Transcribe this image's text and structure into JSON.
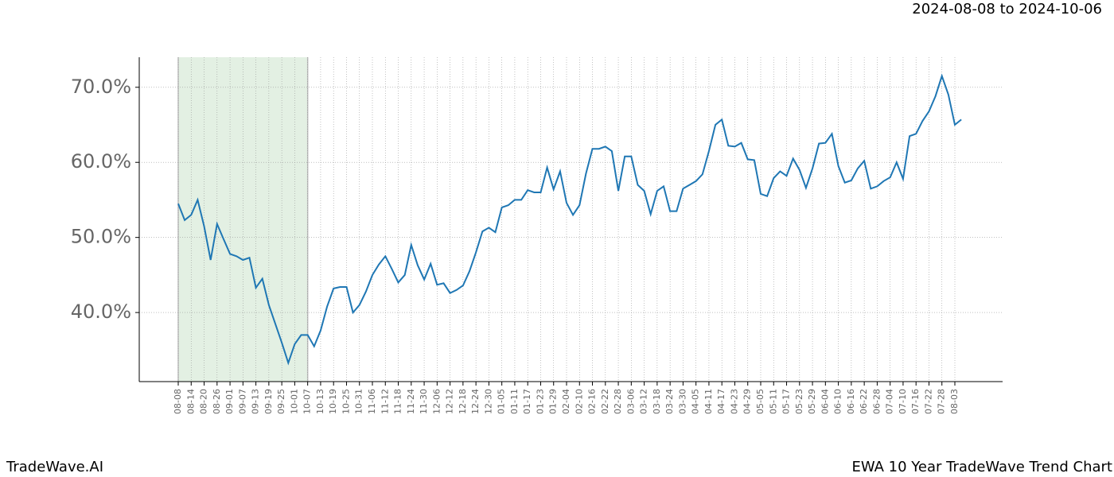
{
  "chart_data": {
    "type": "line",
    "title": "EWA 10 Year TradeWave Trend Chart",
    "subtitle": "2024-08-08 to 2024-10-06",
    "brand": "TradeWave.AI",
    "color": "#1f77b4",
    "grid": true,
    "shaded_span": [
      "08-08",
      "10-07"
    ],
    "shade_color": "#e3f0e3",
    "ylim": [
      30.8,
      74.0
    ],
    "yticks": [
      {
        "value": 40,
        "label": "40.0%"
      },
      {
        "value": 50,
        "label": "50.0%"
      },
      {
        "value": 60,
        "label": "60.0%"
      },
      {
        "value": 70,
        "label": "70.0%"
      }
    ],
    "categories": [
      "08-08",
      null,
      "08-14",
      null,
      "08-20",
      null,
      "08-26",
      null,
      "09-01",
      null,
      "09-07",
      null,
      "09-13",
      null,
      "09-19",
      null,
      "09-25",
      null,
      "10-01",
      null,
      "10-07",
      null,
      "10-13",
      null,
      "10-19",
      null,
      "10-25",
      null,
      "10-31",
      null,
      "11-06",
      null,
      "11-12",
      null,
      "11-18",
      null,
      "11-24",
      null,
      "11-30",
      null,
      "12-06",
      null,
      "12-12",
      null,
      "12-18",
      null,
      "12-24",
      null,
      "12-30",
      null,
      "01-05",
      null,
      "01-11",
      null,
      "01-17",
      null,
      "01-23",
      null,
      "01-29",
      null,
      "02-04",
      null,
      "02-10",
      null,
      "02-16",
      null,
      "02-22",
      null,
      "02-28",
      null,
      "03-06",
      null,
      "03-12",
      null,
      "03-18",
      null,
      "03-24",
      null,
      "03-30",
      null,
      "04-05",
      null,
      "04-11",
      null,
      "04-17",
      null,
      "04-23",
      null,
      "04-29",
      null,
      "05-05",
      null,
      "05-11",
      null,
      "05-17",
      null,
      "05-23",
      null,
      "05-29",
      null,
      "06-04",
      null,
      "06-10",
      null,
      "06-16",
      null,
      "06-22",
      null,
      "06-28",
      null,
      "07-04",
      null,
      "07-10",
      null,
      "07-16",
      null,
      "07-22",
      null,
      "07-28",
      null,
      "08-03",
      null
    ],
    "values": [
      54.5,
      52.3,
      53,
      55,
      51.5,
      47,
      51.8,
      49.8,
      47.8,
      47.5,
      47,
      47.3,
      43.3,
      44.5,
      41,
      38.5,
      36,
      33.3,
      35.8,
      37,
      37,
      35.5,
      37.6,
      40.8,
      43.2,
      43.4,
      43.4,
      40,
      41,
      42.8,
      45,
      46.4,
      47.5,
      45.8,
      44,
      45,
      49,
      46.3,
      44.4,
      46.5,
      43.7,
      43.9,
      42.6,
      43,
      43.6,
      45.5,
      48,
      50.8,
      51.3,
      50.7,
      54,
      54.3,
      55,
      55,
      56.3,
      56,
      56,
      59.3,
      56.4,
      58.8,
      54.6,
      53,
      54.3,
      58.5,
      61.8,
      61.8,
      62.1,
      61.5,
      56.2,
      60.8,
      60.8,
      57,
      56.2,
      53.1,
      56.2,
      56.8,
      53.5,
      53.5,
      56.5,
      57,
      57.5,
      58.4,
      61.5,
      65,
      65.7,
      62.2,
      62.1,
      62.6,
      60.4,
      60.3,
      55.8,
      55.5,
      57.9,
      58.8,
      58.2,
      60.5,
      59,
      56.6,
      59.2,
      62.5,
      62.6,
      63.8,
      59.5,
      57.3,
      57.6,
      59.2,
      60.2,
      56.5,
      56.8,
      57.5,
      58,
      60,
      57.8,
      63.5,
      63.8,
      65.5,
      66.8,
      68.8,
      71.5,
      69,
      65,
      65.7
    ]
  }
}
